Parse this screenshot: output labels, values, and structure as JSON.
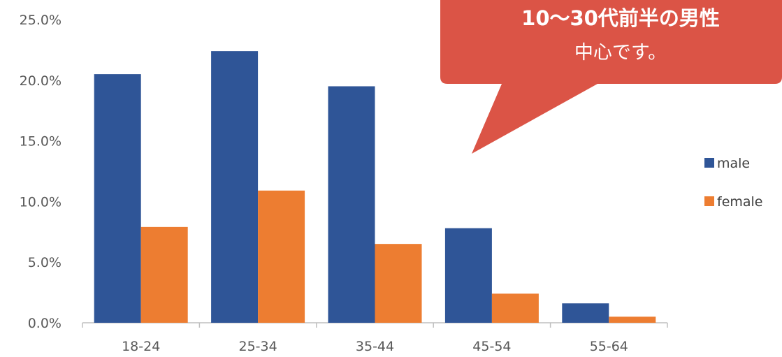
{
  "chart_data": {
    "type": "bar",
    "categories": [
      "18-24",
      "25-34",
      "35-44",
      "45-54",
      "55-64"
    ],
    "series": [
      {
        "name": "male",
        "values": [
          20.5,
          22.4,
          19.5,
          7.8,
          1.6
        ],
        "color": "#2f5597"
      },
      {
        "name": "female",
        "values": [
          7.9,
          10.9,
          6.5,
          2.4,
          0.5
        ],
        "color": "#ed7d31"
      }
    ],
    "ylim": [
      0,
      25
    ],
    "yticks": [
      "0.0%",
      "5.0%",
      "10.0%",
      "15.0%",
      "20.0%",
      "25.0%"
    ],
    "grid": false,
    "legend_position": "right"
  },
  "callout": {
    "line1": "10〜30代前半の男性",
    "line2": "中心です。",
    "color": "#db5446"
  }
}
